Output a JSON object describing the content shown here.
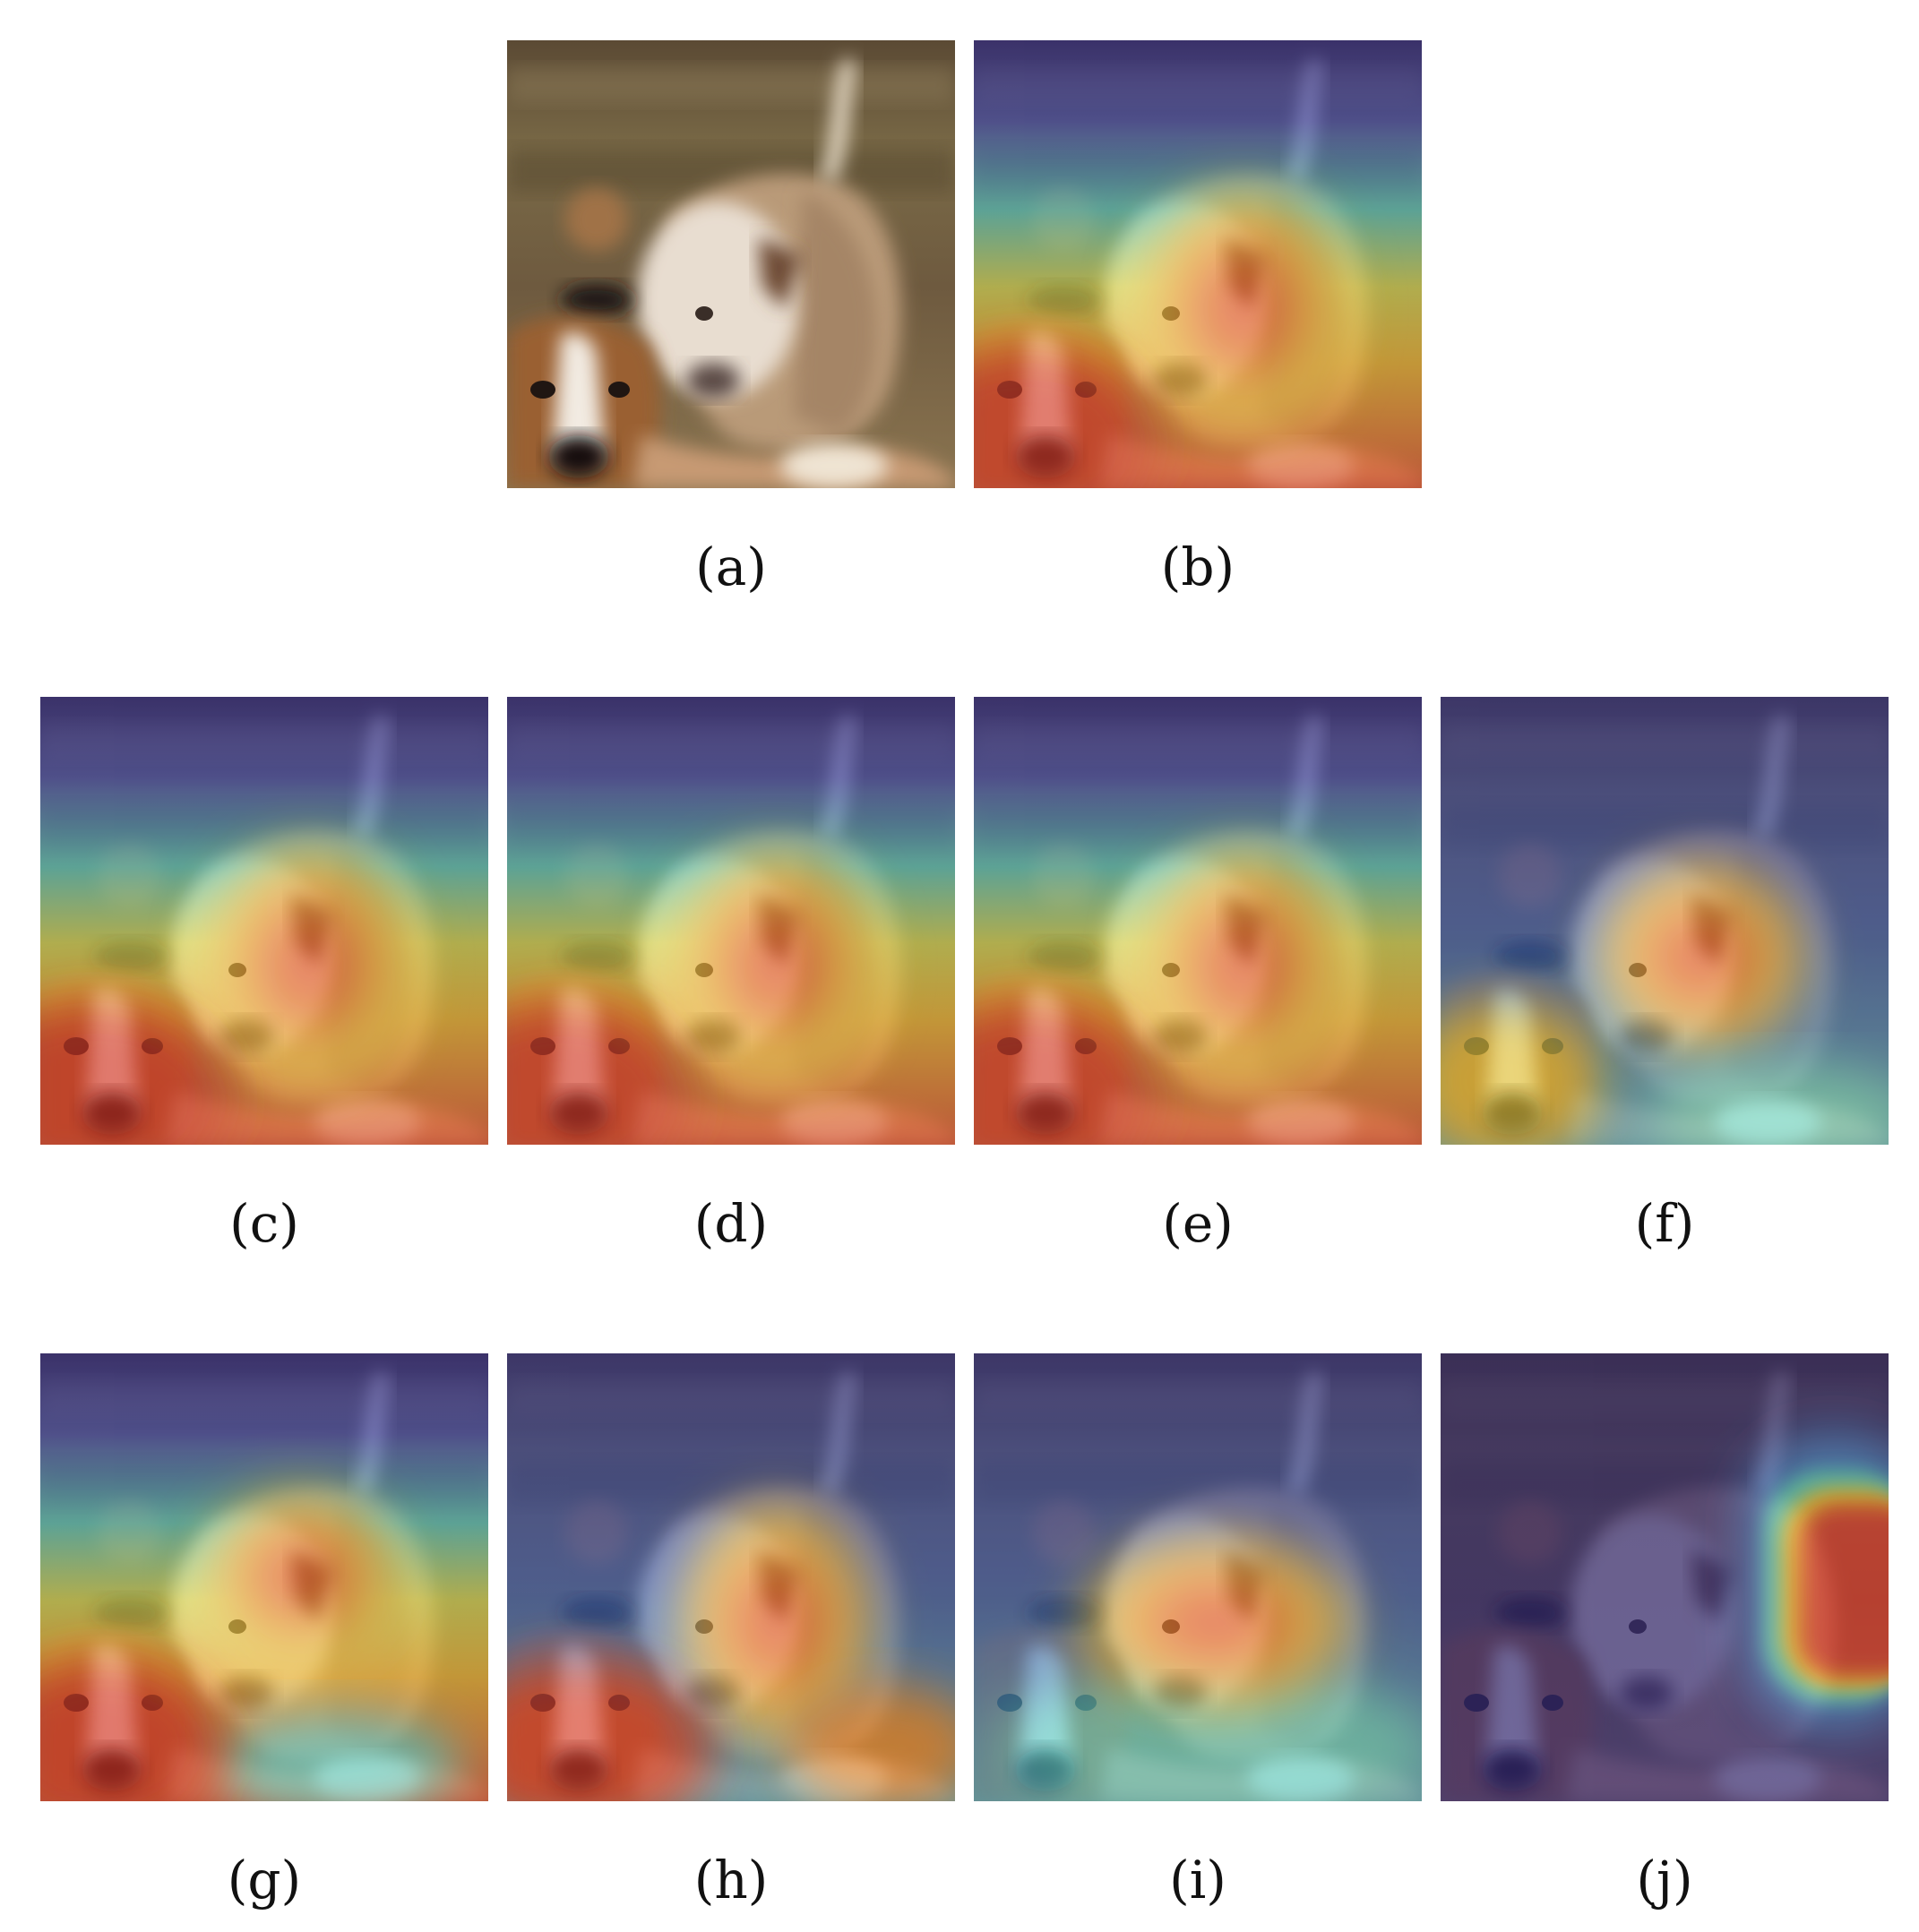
{
  "panels": [
    {
      "id": "a",
      "label": "(a)",
      "overlay": "none"
    },
    {
      "id": "b",
      "label": "(b)",
      "overlay": "heatmap"
    },
    {
      "id": "c",
      "label": "(c)",
      "overlay": "heatmap"
    },
    {
      "id": "d",
      "label": "(d)",
      "overlay": "heatmap"
    },
    {
      "id": "e",
      "label": "(e)",
      "overlay": "heatmap"
    },
    {
      "id": "f",
      "label": "(f)",
      "overlay": "heatmap"
    },
    {
      "id": "g",
      "label": "(g)",
      "overlay": "heatmap"
    },
    {
      "id": "h",
      "label": "(h)",
      "overlay": "heatmap"
    },
    {
      "id": "i",
      "label": "(i)",
      "overlay": "heatmap"
    },
    {
      "id": "j",
      "label": "(j)",
      "overlay": "heatmap"
    }
  ],
  "colors": {
    "background": "#ffffff",
    "heat_hot": "#e0302a",
    "heat_warm": "#f2c12e",
    "heat_mid": "#5fd1c8",
    "heat_cold": "#2b2a8f"
  }
}
